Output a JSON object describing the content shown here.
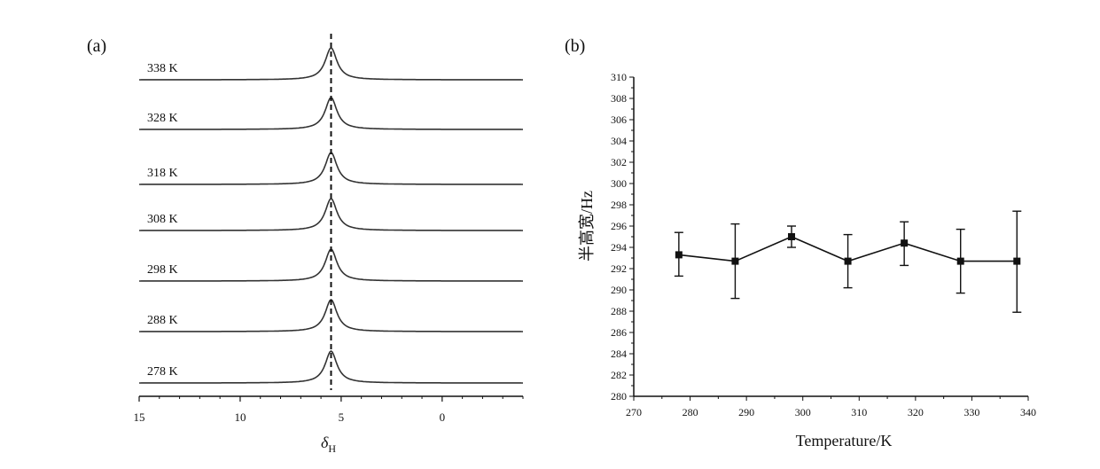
{
  "chart_data": [
    {
      "panel_label": "(a)",
      "type": "line",
      "x_axis": {
        "label_symbol": "δ",
        "label_subscript": "H",
        "range": [
          15,
          -4
        ],
        "reversed": true,
        "ticks": [
          15,
          10,
          5,
          0
        ]
      },
      "reference_line": {
        "x": 5.5,
        "style": "dashed"
      },
      "series": [
        {
          "name": "338 K",
          "peak_center": 5.5,
          "peak_half_width": 0.35
        },
        {
          "name": "328 K",
          "peak_center": 5.5,
          "peak_half_width": 0.35
        },
        {
          "name": "318 K",
          "peak_center": 5.5,
          "peak_half_width": 0.35
        },
        {
          "name": "308 K",
          "peak_center": 5.5,
          "peak_half_width": 0.35
        },
        {
          "name": "298 K",
          "peak_center": 5.5,
          "peak_half_width": 0.35
        },
        {
          "name": "288 K",
          "peak_center": 5.5,
          "peak_half_width": 0.35
        },
        {
          "name": "278 K",
          "peak_center": 5.5,
          "peak_half_width": 0.35
        }
      ]
    },
    {
      "panel_label": "(b)",
      "type": "line",
      "xlabel": "Temperature/K",
      "ylabel": "半高宽/Hz",
      "xlim": [
        270,
        340
      ],
      "ylim": [
        280,
        310
      ],
      "xticks": [
        270,
        280,
        290,
        300,
        310,
        320,
        330,
        340
      ],
      "yticks": [
        280,
        282,
        284,
        286,
        288,
        290,
        292,
        294,
        296,
        298,
        300,
        302,
        304,
        306,
        308,
        310
      ],
      "grid": false,
      "marker": "square",
      "x": [
        278,
        288,
        298,
        308,
        318,
        328,
        338
      ],
      "y": [
        293.3,
        292.7,
        295.0,
        292.7,
        294.4,
        292.7,
        292.7
      ],
      "error_upper": [
        295.4,
        296.2,
        296.0,
        295.2,
        296.4,
        295.7,
        297.4
      ],
      "error_lower": [
        291.3,
        289.2,
        294.0,
        290.2,
        292.3,
        289.7,
        287.9
      ]
    }
  ]
}
